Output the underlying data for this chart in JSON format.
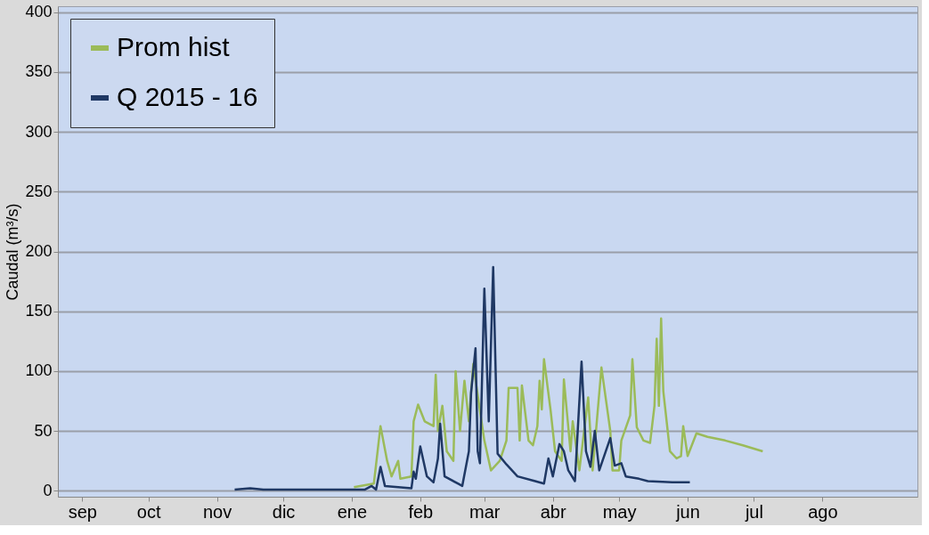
{
  "chart_data": {
    "type": "line",
    "ylabel": "Caudal (m³/s)",
    "xlim": [
      "2015-08-21",
      "2016-09-13"
    ],
    "ylim": [
      -5,
      405
    ],
    "xticks": [
      {
        "value": "2015-09-01",
        "label": "sep"
      },
      {
        "value": "2015-10-01",
        "label": "oct"
      },
      {
        "value": "2015-11-01",
        "label": "nov"
      },
      {
        "value": "2015-12-01",
        "label": "dic"
      },
      {
        "value": "2016-01-01",
        "label": "ene"
      },
      {
        "value": "2016-02-01",
        "label": "feb"
      },
      {
        "value": "2016-03-01",
        "label": "mar"
      },
      {
        "value": "2016-04-01",
        "label": "abr"
      },
      {
        "value": "2016-05-01",
        "label": "may"
      },
      {
        "value": "2016-06-01",
        "label": "jun"
      },
      {
        "value": "2016-07-01",
        "label": "jul"
      },
      {
        "value": "2016-08-01",
        "label": "ago"
      }
    ],
    "yticks": [
      0,
      50,
      100,
      150,
      200,
      250,
      300,
      350,
      400
    ],
    "grid": "y",
    "legend": "top left",
    "marker": "none",
    "line_style": "solid",
    "series": [
      {
        "name": "Prom hist",
        "color": "#9bbb59",
        "x": [
          "2016-01-02",
          "2016-01-11",
          "2016-01-14",
          "2016-01-17",
          "2016-01-19",
          "2016-01-22",
          "2016-01-23",
          "2016-01-28",
          "2016-01-29",
          "2016-01-31",
          "2016-02-03",
          "2016-02-07",
          "2016-02-08",
          "2016-02-09",
          "2016-02-11",
          "2016-02-13",
          "2016-02-16",
          "2016-02-17",
          "2016-02-19",
          "2016-02-21",
          "2016-02-23",
          "2016-02-25",
          "2016-02-28",
          "2016-03-01",
          "2016-03-04",
          "2016-03-08",
          "2016-03-11",
          "2016-03-12",
          "2016-03-16",
          "2016-03-17",
          "2016-03-18",
          "2016-03-21",
          "2016-03-23",
          "2016-03-25",
          "2016-03-26",
          "2016-03-27",
          "2016-03-28",
          "2016-03-31",
          "2016-04-02",
          "2016-04-05",
          "2016-04-06",
          "2016-04-09",
          "2016-04-10",
          "2016-04-13",
          "2016-04-17",
          "2016-04-19",
          "2016-04-23",
          "2016-04-27",
          "2016-04-28",
          "2016-05-01",
          "2016-05-02",
          "2016-05-06",
          "2016-05-07",
          "2016-05-09",
          "2016-05-12",
          "2016-05-15",
          "2016-05-17",
          "2016-05-18",
          "2016-05-19",
          "2016-05-20",
          "2016-05-21",
          "2016-05-24",
          "2016-05-27",
          "2016-05-29",
          "2016-05-30",
          "2016-06-01",
          "2016-06-05",
          "2016-06-10",
          "2016-06-18",
          "2016-06-26",
          "2016-07-05"
        ],
        "values": [
          3,
          6,
          54,
          25,
          12,
          25,
          10,
          12,
          58,
          72,
          58,
          54,
          97,
          50,
          71,
          33,
          25,
          100,
          50,
          92,
          58,
          106,
          67,
          42,
          17,
          25,
          42,
          86,
          86,
          42,
          88,
          42,
          38,
          54,
          92,
          68,
          110,
          67,
          33,
          25,
          93,
          33,
          58,
          17,
          78,
          17,
          103,
          50,
          17,
          17,
          42,
          63,
          110,
          53,
          42,
          40,
          71,
          127,
          71,
          144,
          83,
          33,
          27,
          29,
          54,
          29,
          48,
          45,
          42,
          38,
          33
        ]
      },
      {
        "name": "Q 2015 - 16",
        "color": "#1f3864",
        "x": [
          "2015-11-09",
          "2015-11-16",
          "2015-11-22",
          "2016-01-07",
          "2016-01-10",
          "2016-01-12",
          "2016-01-14",
          "2016-01-16",
          "2016-01-28",
          "2016-01-29",
          "2016-01-30",
          "2016-02-01",
          "2016-02-04",
          "2016-02-07",
          "2016-02-09",
          "2016-02-10",
          "2016-02-12",
          "2016-02-18",
          "2016-02-20",
          "2016-02-23",
          "2016-02-24",
          "2016-02-26",
          "2016-02-27",
          "2016-02-28",
          "2016-03-01",
          "2016-03-03",
          "2016-03-05",
          "2016-03-07",
          "2016-03-11",
          "2016-03-16",
          "2016-03-24",
          "2016-03-28",
          "2016-03-30",
          "2016-04-01",
          "2016-04-04",
          "2016-04-06",
          "2016-04-08",
          "2016-04-11",
          "2016-04-14",
          "2016-04-16",
          "2016-04-18",
          "2016-04-20",
          "2016-04-22",
          "2016-04-27",
          "2016-04-29",
          "2016-05-02",
          "2016-05-04",
          "2016-05-10",
          "2016-05-14",
          "2016-05-25",
          "2016-06-02"
        ],
        "values": [
          1,
          2,
          1,
          1,
          4,
          1,
          20,
          4,
          2,
          16,
          10,
          37,
          12,
          7,
          27,
          56,
          12,
          6,
          4,
          33,
          82,
          119,
          33,
          23,
          169,
          58,
          187,
          31,
          22,
          12,
          8,
          6,
          27,
          12,
          39,
          33,
          17,
          8,
          108,
          33,
          20,
          50,
          17,
          44,
          21,
          23,
          12,
          10,
          8,
          7,
          7
        ]
      }
    ]
  }
}
